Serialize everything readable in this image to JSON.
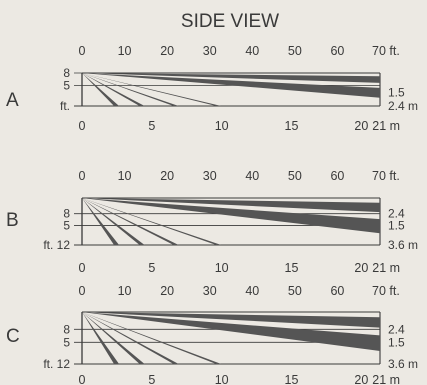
{
  "title": "SIDE VIEW",
  "colors": {
    "background": "#ece9e3",
    "ink": "#3a3a3a",
    "beam": "#555555"
  },
  "panels": [
    {
      "id": "A",
      "label": "A",
      "feet_axis": [
        "0",
        "10",
        "20",
        "30",
        "40",
        "50",
        "60",
        "70 ft."
      ],
      "meter_axis": [
        "0",
        "5",
        "10",
        "15",
        "20",
        "21 m"
      ],
      "left_ticks": [
        "5",
        "8"
      ],
      "left_unit": "ft.",
      "right_labels": [
        "1.5",
        "2.4 m"
      ],
      "mount_height_ft": 8,
      "range_ft": 70
    },
    {
      "id": "B",
      "label": "B",
      "feet_axis": [
        "0",
        "10",
        "20",
        "30",
        "40",
        "50",
        "60",
        "70 ft."
      ],
      "meter_axis": [
        "0",
        "5",
        "10",
        "15",
        "20",
        "21 m"
      ],
      "left_ticks": [
        "5",
        "8"
      ],
      "left_unit": "ft. 12",
      "right_labels": [
        "1.5",
        "2.4",
        "3.6 m"
      ],
      "mount_height_ft": 12,
      "range_ft": 70
    },
    {
      "id": "C",
      "label": "C",
      "feet_axis": [
        "0",
        "10",
        "20",
        "30",
        "40",
        "50",
        "60",
        "70 ft."
      ],
      "meter_axis": [
        "0",
        "5",
        "10",
        "15",
        "20",
        "21 m"
      ],
      "left_ticks": [
        "5",
        "8"
      ],
      "left_unit": "ft. 12",
      "right_labels": [
        "1.5",
        "2.4",
        "3.6 m"
      ],
      "mount_height_ft": 12,
      "range_ft": 70
    }
  ]
}
